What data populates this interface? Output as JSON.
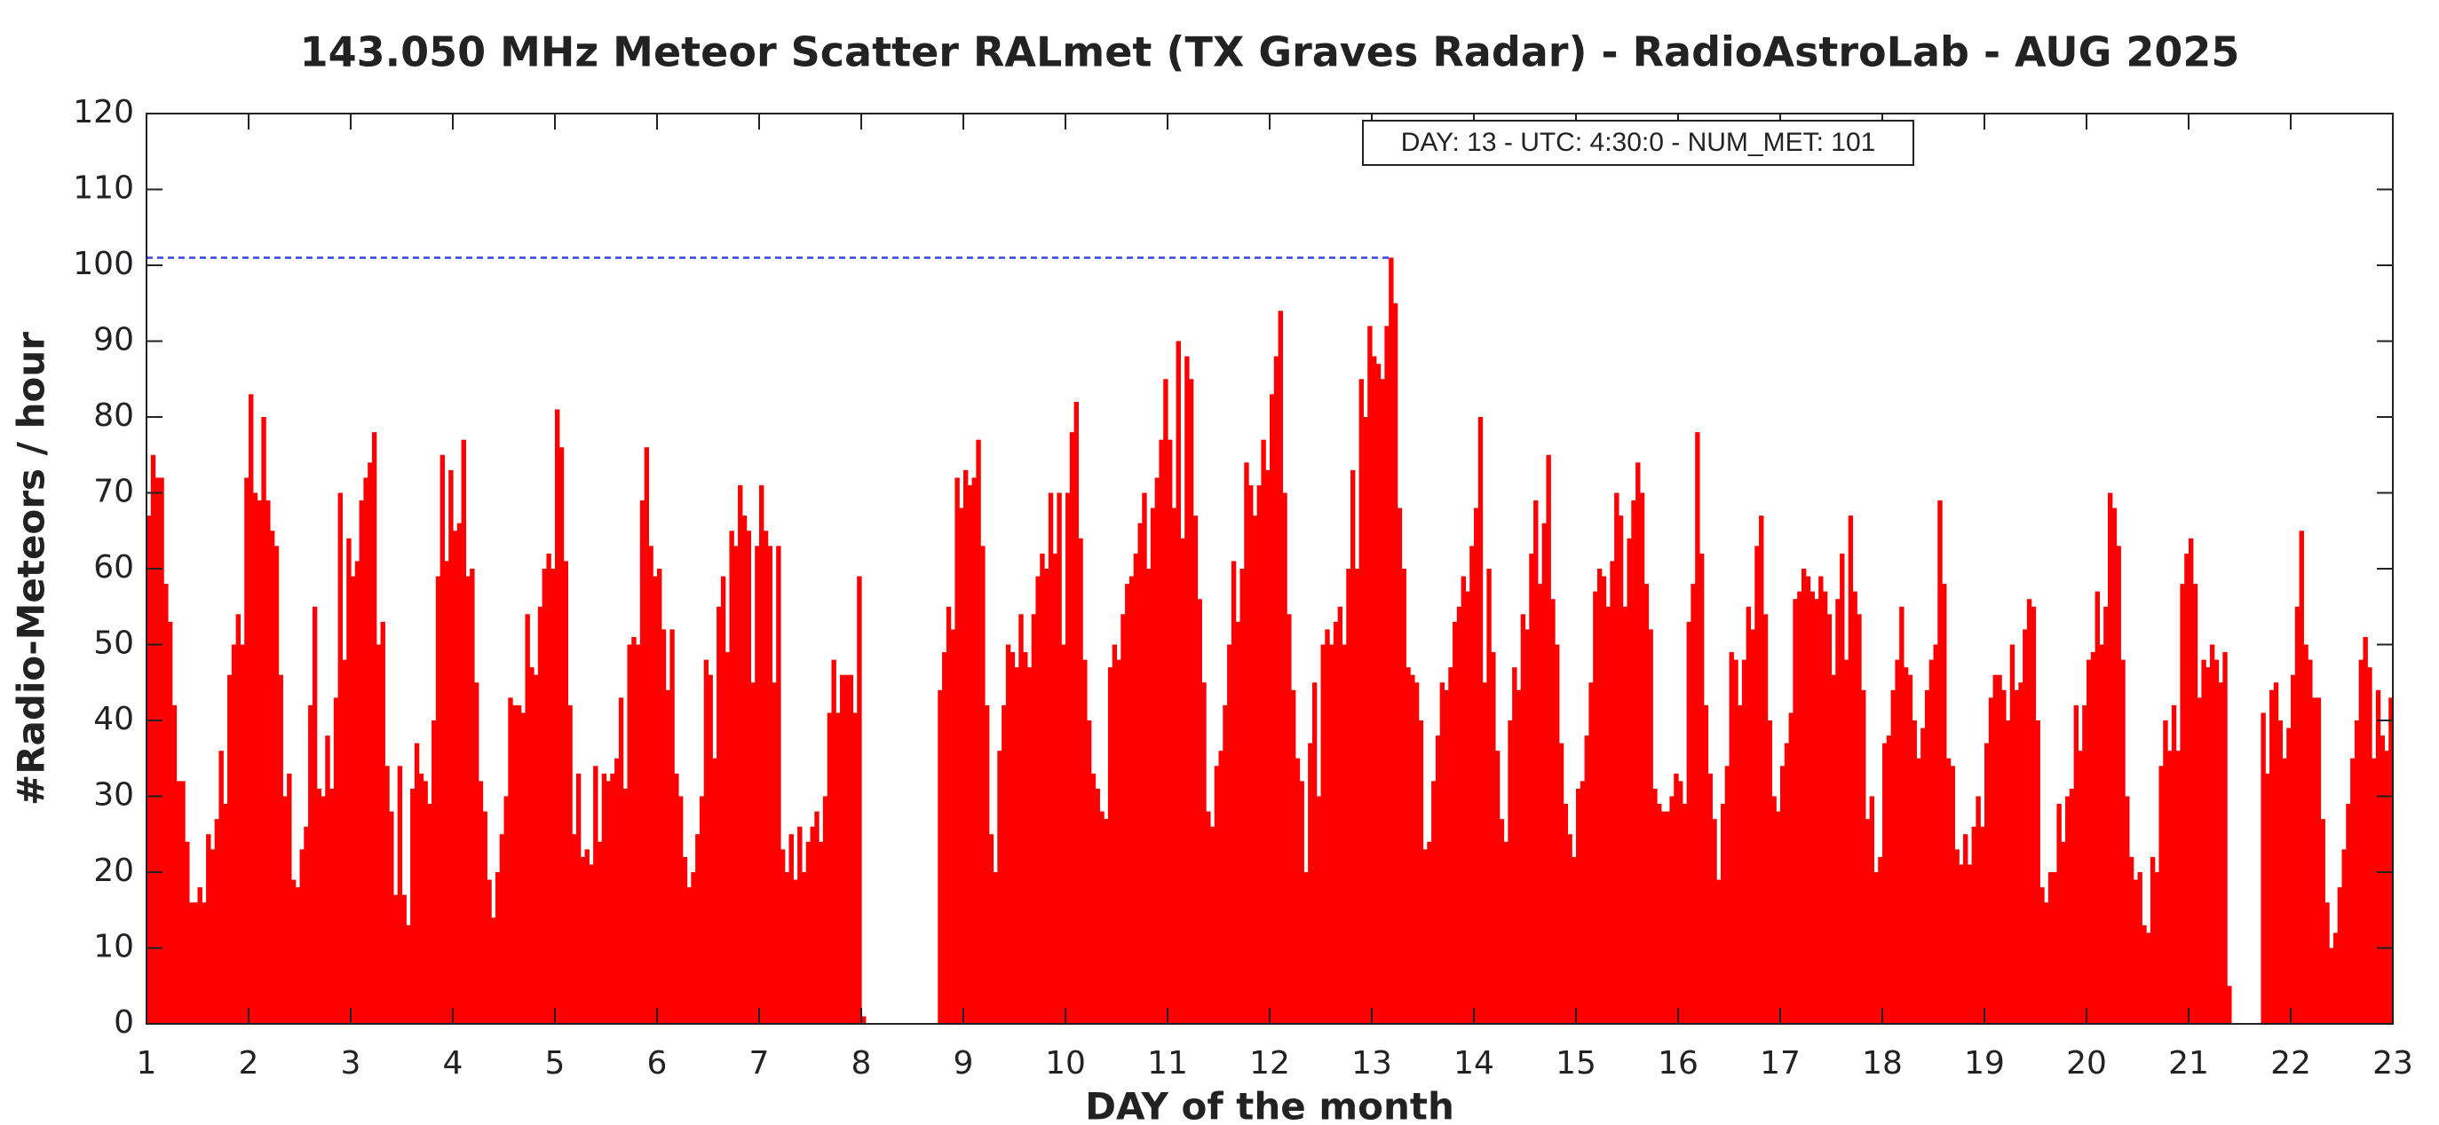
{
  "chart_data": {
    "type": "bar",
    "title": "143.050 MHz Meteor Scatter RALmet (TX Graves Radar) - RadioAstroLab - AUG 2025",
    "x_label": "DAY of the month",
    "y_label": "#Radio-Meteors / hour",
    "annotation": "DAY: 13 - UTC: 4:30:0 - NUM_MET: 101",
    "color": "#ff0000",
    "xlim": [
      1,
      23
    ],
    "xticks": [
      1,
      2,
      3,
      4,
      5,
      6,
      7,
      8,
      9,
      10,
      11,
      12,
      13,
      14,
      15,
      16,
      17,
      18,
      19,
      20,
      21,
      22,
      23
    ],
    "ylim": [
      0,
      120
    ],
    "yticks": [
      0,
      10,
      20,
      30,
      40,
      50,
      60,
      70,
      80,
      90,
      100,
      110,
      120
    ],
    "values": [
      67,
      75,
      72,
      72,
      58,
      53,
      42,
      32,
      32,
      24,
      16,
      16,
      18,
      16,
      25,
      23,
      27,
      36,
      29,
      46,
      50,
      54,
      50,
      72,
      83,
      70,
      69,
      80,
      69,
      65,
      63,
      46,
      30,
      33,
      19,
      18,
      23,
      26,
      42,
      55,
      31,
      30,
      38,
      31,
      43,
      70,
      48,
      64,
      59,
      61,
      69,
      72,
      74,
      78,
      50,
      53,
      34,
      28,
      17,
      34,
      17,
      13,
      31,
      37,
      33,
      32,
      29,
      40,
      59,
      75,
      61,
      73,
      65,
      66,
      77,
      59,
      60,
      45,
      32,
      28,
      19,
      14,
      20,
      25,
      30,
      43,
      42,
      42,
      41,
      54,
      47,
      46,
      55,
      60,
      62,
      60,
      81,
      76,
      61,
      42,
      25,
      33,
      22,
      23,
      21,
      34,
      24,
      33,
      32,
      33,
      35,
      43,
      31,
      50,
      51,
      50,
      69,
      76,
      63,
      59,
      60,
      52,
      44,
      52,
      33,
      30,
      22,
      18,
      20,
      25,
      30,
      48,
      46,
      35,
      55,
      59,
      49,
      65,
      63,
      71,
      67,
      65,
      45,
      63,
      71,
      65,
      63,
      45,
      63,
      23,
      20,
      25,
      19,
      26,
      20,
      24,
      26,
      28,
      24,
      30,
      41,
      48,
      41,
      46,
      46,
      46,
      41,
      59,
      1,
      null,
      null,
      null,
      null,
      null,
      null,
      null,
      null,
      null,
      null,
      null,
      null,
      null,
      null,
      null,
      null,
      null,
      44,
      49,
      55,
      52,
      72,
      68,
      73,
      71,
      72,
      77,
      63,
      42,
      25,
      20,
      36,
      42,
      50,
      49,
      47,
      54,
      49,
      47,
      54,
      59,
      62,
      60,
      70,
      62,
      70,
      50,
      70,
      78,
      82,
      64,
      48,
      40,
      33,
      31,
      28,
      27,
      47,
      50,
      48,
      54,
      58,
      59,
      62,
      66,
      70,
      60,
      68,
      72,
      77,
      85,
      77,
      68,
      90,
      64,
      88,
      85,
      67,
      56,
      45,
      28,
      26,
      34,
      36,
      42,
      50,
      61,
      53,
      60,
      74,
      71,
      67,
      71,
      77,
      73,
      83,
      88,
      94,
      70,
      54,
      44,
      35,
      32,
      20,
      37,
      45,
      30,
      50,
      52,
      50,
      53,
      55,
      50,
      60,
      73,
      60,
      85,
      80,
      92,
      88,
      87,
      85,
      92,
      101,
      95,
      68,
      60,
      47,
      46,
      45,
      40,
      23,
      24,
      32,
      38,
      45,
      44,
      47,
      53,
      55,
      59,
      57,
      63,
      68,
      80,
      45,
      60,
      49,
      36,
      27,
      24,
      40,
      47,
      44,
      54,
      52,
      62,
      69,
      58,
      66,
      75,
      56,
      50,
      37,
      29,
      25,
      22,
      31,
      32,
      38,
      45,
      57,
      60,
      59,
      55,
      61,
      70,
      67,
      55,
      64,
      69,
      74,
      70,
      58,
      52,
      31,
      29,
      28,
      28,
      30,
      33,
      32,
      29,
      53,
      58,
      78,
      62,
      42,
      33,
      27,
      19,
      29,
      34,
      49,
      48,
      42,
      48,
      55,
      52,
      63,
      67,
      54,
      40,
      30,
      28,
      34,
      37,
      41,
      56,
      57,
      60,
      59,
      57,
      56,
      59,
      57,
      54,
      46,
      56,
      62,
      48,
      67,
      57,
      54,
      44,
      27,
      30,
      20,
      22,
      37,
      38,
      44,
      48,
      55,
      47,
      46,
      40,
      35,
      39,
      44,
      48,
      50,
      69,
      58,
      35,
      34,
      23,
      21,
      25,
      21,
      26,
      30,
      26,
      37,
      43,
      46,
      46,
      44,
      40,
      50,
      44,
      45,
      52,
      56,
      55,
      40,
      18,
      16,
      20,
      20,
      29,
      24,
      30,
      31,
      42,
      36,
      42,
      48,
      49,
      57,
      50,
      55,
      70,
      68,
      63,
      48,
      30,
      22,
      19,
      20,
      13,
      12,
      22,
      20,
      34,
      40,
      36,
      42,
      36,
      58,
      62,
      64,
      58,
      43,
      48,
      47,
      50,
      48,
      45,
      49,
      5,
      null,
      null,
      null,
      null,
      null,
      null,
      null,
      41,
      33,
      44,
      45,
      40,
      35,
      39,
      46,
      55,
      65,
      50,
      48,
      43,
      43,
      27,
      16,
      10,
      12,
      18,
      23,
      29,
      35,
      40,
      48,
      51,
      47,
      35,
      44,
      38,
      36,
      43
    ]
  }
}
